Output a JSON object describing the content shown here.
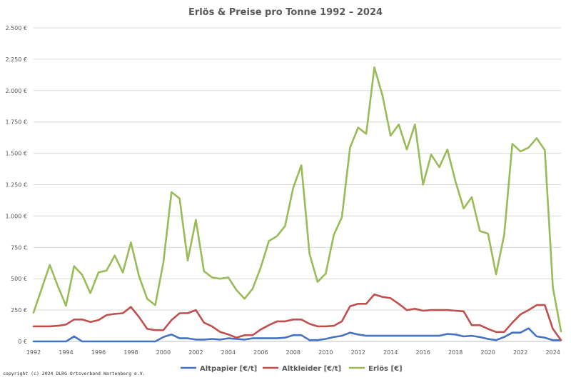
{
  "chart_data": {
    "type": "line",
    "title": "Erlös & Preise pro Tonne 1992 – 2024",
    "xlabel": "",
    "ylabel": "",
    "xlim": [
      1992,
      2024.5
    ],
    "ylim": [
      0,
      2500
    ],
    "grid": true,
    "legend": "bottom",
    "x_ticks": [
      1992,
      1994,
      1996,
      1998,
      2000,
      2002,
      2004,
      2006,
      2008,
      2010,
      2012,
      2014,
      2016,
      2018,
      2020,
      2022,
      2024
    ],
    "y_ticks": [
      {
        "value": 0,
        "label": "0 €"
      },
      {
        "value": 250,
        "label": "250 €"
      },
      {
        "value": 500,
        "label": "500 €"
      },
      {
        "value": 750,
        "label": "750 €"
      },
      {
        "value": 1000,
        "label": "1.000 €"
      },
      {
        "value": 1250,
        "label": "1.250 €"
      },
      {
        "value": 1500,
        "label": "1.500 €"
      },
      {
        "value": 1750,
        "label": "1.750 €"
      },
      {
        "value": 2000,
        "label": "2.000 €"
      },
      {
        "value": 2250,
        "label": "2.250 €"
      },
      {
        "value": 2500,
        "label": "2.500 €"
      }
    ],
    "series": [
      {
        "name": "Altpapier [€/t]",
        "color": "#4472C4",
        "x": [
          1992,
          1992.5,
          1993,
          1993.5,
          1994,
          1994.5,
          1995,
          1995.5,
          1996,
          1996.5,
          1997,
          1997.5,
          1998,
          1998.5,
          1999,
          1999.5,
          2000,
          2000.5,
          2001,
          2001.5,
          2002,
          2002.5,
          2003,
          2003.5,
          2004,
          2004.5,
          2005,
          2005.5,
          2006,
          2006.5,
          2007,
          2007.5,
          2008,
          2008.5,
          2009,
          2009.5,
          2010,
          2010.5,
          2011,
          2011.5,
          2012,
          2012.5,
          2013,
          2013.5,
          2014,
          2014.5,
          2015,
          2015.5,
          2016,
          2016.5,
          2017,
          2017.5,
          2018,
          2018.5,
          2019,
          2019.5,
          2020,
          2020.5,
          2021,
          2021.5,
          2022,
          2022.5,
          2023,
          2023.5,
          2024,
          2024.5
        ],
        "values": [
          0,
          0,
          0,
          0,
          0,
          40,
          0,
          0,
          0,
          0,
          0,
          0,
          0,
          0,
          0,
          0,
          35,
          55,
          25,
          25,
          15,
          15,
          20,
          15,
          25,
          20,
          15,
          25,
          25,
          25,
          25,
          30,
          50,
          50,
          10,
          10,
          20,
          35,
          45,
          70,
          55,
          45,
          45,
          45,
          45,
          45,
          45,
          45,
          45,
          45,
          45,
          60,
          55,
          40,
          45,
          35,
          20,
          10,
          35,
          70,
          70,
          105,
          40,
          30,
          10,
          10
        ]
      },
      {
        "name": "Altkleider [€/t]",
        "color": "#C0504D",
        "x": [
          1992,
          1992.5,
          1993,
          1993.5,
          1994,
          1994.5,
          1995,
          1995.5,
          1996,
          1996.5,
          1997,
          1997.5,
          1998,
          1998.5,
          1999,
          1999.5,
          2000,
          2000.5,
          2001,
          2001.5,
          2002,
          2002.5,
          2003,
          2003.5,
          2004,
          2004.5,
          2005,
          2005.5,
          2006,
          2006.5,
          2007,
          2007.5,
          2008,
          2008.5,
          2009,
          2009.5,
          2010,
          2010.5,
          2011,
          2011.5,
          2012,
          2012.5,
          2013,
          2013.5,
          2014,
          2014.5,
          2015,
          2015.5,
          2016,
          2016.5,
          2017,
          2017.5,
          2018,
          2018.5,
          2019,
          2019.5,
          2020,
          2020.5,
          2021,
          2021.5,
          2022,
          2022.5,
          2023,
          2023.5,
          2024,
          2024.5
        ],
        "values": [
          120,
          120,
          120,
          125,
          135,
          175,
          175,
          155,
          170,
          210,
          220,
          225,
          275,
          195,
          100,
          90,
          90,
          170,
          225,
          225,
          250,
          150,
          120,
          75,
          55,
          30,
          50,
          50,
          95,
          130,
          160,
          160,
          175,
          175,
          140,
          120,
          120,
          125,
          160,
          280,
          300,
          300,
          375,
          355,
          345,
          300,
          250,
          260,
          245,
          250,
          250,
          250,
          245,
          240,
          130,
          130,
          100,
          75,
          75,
          150,
          215,
          250,
          290,
          290,
          100,
          10
        ]
      },
      {
        "name": "Erlös [€]",
        "color": "#9BBB59",
        "x": [
          1992,
          1992.5,
          1993,
          1993.5,
          1994,
          1994.5,
          1995,
          1995.5,
          1996,
          1996.5,
          1997,
          1997.5,
          1998,
          1998.5,
          1999,
          1999.5,
          2000,
          2000.5,
          2001,
          2001.5,
          2002,
          2002.5,
          2003,
          2003.5,
          2004,
          2004.5,
          2005,
          2005.5,
          2006,
          2006.5,
          2007,
          2007.5,
          2008,
          2008.5,
          2009,
          2009.5,
          2010,
          2010.5,
          2011,
          2011.5,
          2012,
          2012.5,
          2013,
          2013.5,
          2014,
          2014.5,
          2015,
          2015.5,
          2016,
          2016.5,
          2017,
          2017.5,
          2018,
          2018.5,
          2019,
          2019.5,
          2020,
          2020.5,
          2021,
          2021.5,
          2022,
          2022.5,
          2023,
          2023.5,
          2024,
          2024.5
        ],
        "values": [
          230,
          420,
          610,
          440,
          285,
          600,
          530,
          385,
          550,
          565,
          685,
          550,
          790,
          520,
          340,
          290,
          630,
          1190,
          1140,
          645,
          970,
          560,
          510,
          500,
          510,
          410,
          340,
          420,
          590,
          800,
          840,
          920,
          1225,
          1405,
          700,
          475,
          540,
          850,
          990,
          1545,
          1705,
          1655,
          2185,
          1960,
          1640,
          1730,
          1530,
          1730,
          1250,
          1490,
          1390,
          1530,
          1275,
          1060,
          1150,
          880,
          860,
          535,
          850,
          1575,
          1515,
          1545,
          1620,
          1525,
          430,
          80
        ]
      }
    ]
  },
  "footer": {
    "copyright": "copyright (c) 2024 DLRG Ortsverband Wartenberg e.V."
  }
}
